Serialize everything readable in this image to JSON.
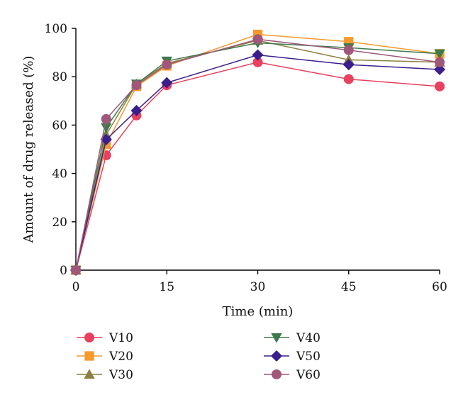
{
  "chart_data": {
    "type": "line",
    "title": "",
    "xlabel": "Time (min)",
    "ylabel": "Amount of drug released (%)",
    "xlim": [
      0,
      60
    ],
    "ylim": [
      0,
      100
    ],
    "x_ticks": [
      0,
      15,
      30,
      45,
      60
    ],
    "y_ticks": [
      0,
      20,
      40,
      60,
      80,
      100
    ],
    "grid": false,
    "legend_position": "bottom",
    "x": [
      0,
      5,
      10,
      15,
      30,
      45,
      60
    ],
    "series": [
      {
        "name": "V10",
        "color": "#e8415f",
        "marker": "circle",
        "values": [
          0,
          47.5,
          64,
          76.5,
          86,
          79,
          76
        ]
      },
      {
        "name": "V20",
        "color": "#f49a2e",
        "marker": "square",
        "values": [
          0,
          52,
          76,
          84.5,
          97.5,
          94.5,
          89.5
        ]
      },
      {
        "name": "V30",
        "color": "#8c8040",
        "marker": "triangle-up",
        "values": [
          0,
          56,
          77,
          85.5,
          95,
          87,
          86
        ]
      },
      {
        "name": "V40",
        "color": "#3f7a4c",
        "marker": "triangle-down",
        "values": [
          0,
          59,
          77,
          86.5,
          94,
          92,
          89.5
        ]
      },
      {
        "name": "V50",
        "color": "#3a1f8c",
        "marker": "diamond",
        "values": [
          0,
          54,
          66,
          77.5,
          89,
          85,
          83
        ]
      },
      {
        "name": "V60",
        "color": "#a0577a",
        "marker": "circle",
        "values": [
          0,
          62.5,
          76.5,
          85,
          95.5,
          91,
          86
        ]
      }
    ]
  }
}
